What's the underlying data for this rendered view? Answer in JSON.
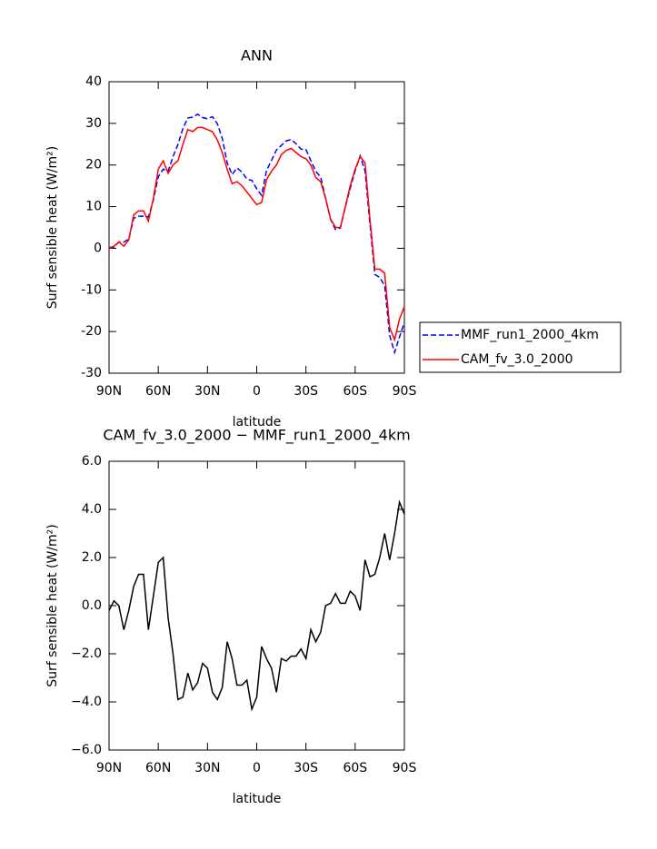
{
  "chart_data": [
    {
      "type": "line",
      "title": "ANN",
      "x_label": "latitude",
      "y_label": "Surf sensible heat (W/m²)",
      "x": [
        90,
        87,
        84,
        81,
        78,
        75,
        72,
        69,
        66,
        63,
        60,
        57,
        54,
        51,
        48,
        45,
        42,
        39,
        36,
        33,
        30,
        27,
        24,
        21,
        18,
        15,
        12,
        9,
        6,
        3,
        0,
        -3,
        -6,
        -9,
        -12,
        -15,
        -18,
        -21,
        -24,
        -27,
        -30,
        -33,
        -36,
        -39,
        -42,
        -45,
        -48,
        -51,
        -54,
        -57,
        -60,
        -63,
        -66,
        -69,
        -72,
        -75,
        -78,
        -81,
        -84,
        -87,
        -90
      ],
      "series": [
        {
          "name": "MMF_run1_2000_4km",
          "color": "#0000ff",
          "line_style": "dashed",
          "values": [
            0.2,
            0.3,
            1.5,
            1.5,
            2.2,
            7.2,
            7.7,
            7.7,
            7.5,
            11.6,
            17.2,
            19,
            18.5,
            22,
            24.9,
            28.8,
            31.3,
            31.5,
            32.2,
            31.4,
            31.1,
            31.6,
            29.9,
            26.4,
            20.5,
            17.7,
            19.3,
            18.3,
            16.6,
            16.3,
            14.3,
            12.7,
            18.7,
            21.1,
            23.6,
            24.7,
            25.8,
            26.1,
            25.1,
            23.8,
            23.7,
            21,
            18.5,
            17.1,
            12,
            6.9,
            4.5,
            4.9,
            9.9,
            14.4,
            18.6,
            22.2,
            18.6,
            5.8,
            -6.3,
            -7,
            -9,
            -20.9,
            -25,
            -21.3,
            -17.8
          ]
        },
        {
          "name": "CAM_fv_3.0_2000",
          "color": "#ff0000",
          "line_style": "solid",
          "values": [
            0,
            0.5,
            1.5,
            0.5,
            2,
            8,
            9,
            9,
            6.5,
            12,
            19,
            21,
            18,
            20,
            21,
            25,
            28.5,
            28,
            29,
            29,
            28.5,
            28,
            26,
            23,
            19,
            15.5,
            16,
            15,
            13.5,
            12,
            10.5,
            11,
            16.5,
            18.5,
            20,
            22.5,
            23.5,
            24,
            23,
            22,
            21.5,
            20,
            17,
            16,
            12,
            7,
            5,
            5,
            10,
            15,
            19,
            22,
            20.5,
            7,
            -5,
            -5,
            -6,
            -19,
            -22,
            -17,
            -14
          ]
        }
      ],
      "xlim": [
        90,
        -90
      ],
      "xticks": [
        {
          "value": 90,
          "label": "90N"
        },
        {
          "value": 60,
          "label": "60N"
        },
        {
          "value": 30,
          "label": "30N"
        },
        0,
        {
          "value": -30,
          "label": "30S"
        },
        {
          "value": -60,
          "label": "60S"
        },
        {
          "value": -90,
          "label": "90S"
        }
      ],
      "ylim": [
        -30,
        40
      ],
      "yticks": [
        -30,
        -20,
        -10,
        0,
        10,
        20,
        30,
        40
      ],
      "legend": "right"
    },
    {
      "type": "line",
      "title": "CAM_fv_3.0_2000 − MMF_run1_2000_4km",
      "x_label": "latitude",
      "y_label": "Surf sensible heat (W/m²)",
      "x": [
        90,
        87,
        84,
        81,
        78,
        75,
        72,
        69,
        66,
        63,
        60,
        57,
        54,
        51,
        48,
        45,
        42,
        39,
        36,
        33,
        30,
        27,
        24,
        21,
        18,
        15,
        12,
        9,
        6,
        3,
        0,
        -3,
        -6,
        -9,
        -12,
        -15,
        -18,
        -21,
        -24,
        -27,
        -30,
        -33,
        -36,
        -39,
        -42,
        -45,
        -48,
        -51,
        -54,
        -57,
        -60,
        -63,
        -66,
        -69,
        -72,
        -75,
        -78,
        -81,
        -84,
        -87,
        -90
      ],
      "series": [
        {
          "color": "#000000",
          "line_style": "solid",
          "values": [
            -0.2,
            0.2,
            0,
            -1.0,
            -0.2,
            0.8,
            1.3,
            1.3,
            -1.0,
            0.4,
            1.8,
            2.0,
            -0.5,
            -2.0,
            -3.9,
            -3.8,
            -2.8,
            -3.5,
            -3.2,
            -2.4,
            -2.6,
            -3.6,
            -3.9,
            -3.4,
            -1.5,
            -2.2,
            -3.3,
            -3.3,
            -3.1,
            -4.3,
            -3.8,
            -1.7,
            -2.2,
            -2.6,
            -3.6,
            -2.2,
            -2.3,
            -2.1,
            -2.1,
            -1.8,
            -2.2,
            -1.0,
            -1.5,
            -1.1,
            0,
            0.1,
            0.5,
            0.1,
            0.1,
            0.6,
            0.4,
            -0.2,
            1.9,
            1.2,
            1.3,
            2.0,
            3.0,
            1.9,
            3.0,
            4.3,
            3.8
          ]
        }
      ],
      "xlim": [
        90,
        -90
      ],
      "xticks": [
        {
          "value": 90,
          "label": "90N"
        },
        {
          "value": 60,
          "label": "60N"
        },
        {
          "value": 30,
          "label": "30N"
        },
        0,
        {
          "value": -30,
          "label": "30S"
        },
        {
          "value": -60,
          "label": "60S"
        },
        {
          "value": -90,
          "label": "90S"
        }
      ],
      "ylim": [
        -6,
        6
      ],
      "yticks": [
        {
          "value": -6,
          "label": "−6.0"
        },
        {
          "value": -4,
          "label": "−4.0"
        },
        {
          "value": -2,
          "label": "−2.0"
        },
        {
          "value": 0,
          "label": "0.0"
        },
        {
          "value": 2,
          "label": "2.0"
        },
        {
          "value": 4,
          "label": "4.0"
        },
        {
          "value": 6,
          "label": "6.0"
        }
      ]
    }
  ]
}
